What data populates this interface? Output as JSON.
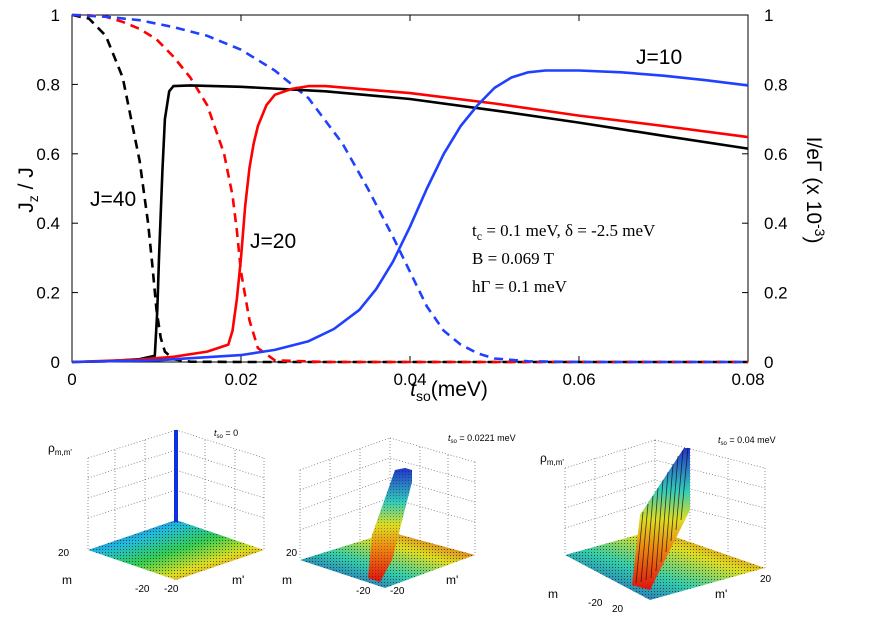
{
  "chart_data": {
    "type": "line",
    "xlabel_var": "t",
    "xlabel_sub": "so",
    "xlabel_unit": "(meV)",
    "ylabel_left_main": "J",
    "ylabel_left_sub": "z",
    "ylabel_left_rest": " / J",
    "ylabel_right_main": "I/eΓ (x 10",
    "ylabel_right_sup": "-3",
    "ylabel_right_end": ")",
    "xlim": [
      0,
      0.08
    ],
    "ylim_left": [
      0,
      1
    ],
    "ylim_right": [
      0,
      1
    ],
    "x_ticks": [
      "0",
      "0.02",
      "0.04",
      "0.06",
      "0.08"
    ],
    "y_ticks_left": [
      "0",
      "0.2",
      "0.4",
      "0.6",
      "0.8",
      "1"
    ],
    "y_ticks_right": [
      "0",
      "0.2",
      "0.4",
      "0.6",
      "0.8",
      "1"
    ],
    "annotations": {
      "j10": "J=10",
      "j20": "J=20",
      "j40": "J=40",
      "param1": "t",
      "param1_sub": "c",
      "param1_rest": " = 0.1 meV,   δ = -2.5 meV",
      "param2": "B = 0.069 T",
      "param3": "hΓ = 0.1 meV"
    },
    "series": [
      {
        "name": "J=40 Jz/J",
        "style": "dashed",
        "color": "#000000",
        "x": [
          0,
          0.002,
          0.004,
          0.006,
          0.008,
          0.009,
          0.0095,
          0.01,
          0.0105,
          0.011,
          0.012,
          0.014,
          0.02,
          0.03,
          0.04,
          0.08
        ],
        "y": [
          1,
          0.99,
          0.94,
          0.82,
          0.58,
          0.4,
          0.28,
          0.15,
          0.07,
          0.03,
          0.008,
          0.001,
          0,
          0,
          0,
          0
        ]
      },
      {
        "name": "J=20 Jz/J",
        "style": "dashed",
        "color": "#ff0000",
        "x": [
          0,
          0.002,
          0.004,
          0.006,
          0.008,
          0.01,
          0.012,
          0.014,
          0.016,
          0.018,
          0.019,
          0.0195,
          0.02,
          0.021,
          0.022,
          0.024,
          0.03,
          0.08
        ],
        "y": [
          1,
          0.999,
          0.995,
          0.98,
          0.96,
          0.93,
          0.88,
          0.82,
          0.74,
          0.6,
          0.48,
          0.38,
          0.26,
          0.12,
          0.04,
          0.005,
          0,
          0
        ]
      },
      {
        "name": "J=10 Jz/J",
        "style": "dashed",
        "color": "#2040ff",
        "x": [
          0,
          0.004,
          0.008,
          0.012,
          0.016,
          0.02,
          0.024,
          0.028,
          0.032,
          0.035,
          0.038,
          0.04,
          0.042,
          0.044,
          0.046,
          0.048,
          0.05,
          0.054,
          0.06,
          0.08
        ],
        "y": [
          1,
          0.995,
          0.985,
          0.965,
          0.94,
          0.9,
          0.84,
          0.76,
          0.63,
          0.5,
          0.36,
          0.26,
          0.16,
          0.09,
          0.05,
          0.025,
          0.01,
          0.002,
          0,
          0
        ]
      },
      {
        "name": "J=40 current",
        "style": "solid",
        "color": "#000000",
        "x": [
          0,
          0.004,
          0.008,
          0.0098,
          0.0101,
          0.0103,
          0.0107,
          0.011,
          0.0115,
          0.012,
          0.014,
          0.02,
          0.03,
          0.04,
          0.05,
          0.06,
          0.07,
          0.08
        ],
        "y": [
          0,
          0.002,
          0.008,
          0.018,
          0.15,
          0.3,
          0.55,
          0.7,
          0.78,
          0.795,
          0.797,
          0.793,
          0.78,
          0.758,
          0.725,
          0.69,
          0.652,
          0.615
        ]
      },
      {
        "name": "J=20 current",
        "style": "solid",
        "color": "#ff0000",
        "x": [
          0,
          0.008,
          0.012,
          0.016,
          0.0185,
          0.019,
          0.0195,
          0.02,
          0.0205,
          0.021,
          0.0215,
          0.022,
          0.023,
          0.024,
          0.026,
          0.028,
          0.03,
          0.04,
          0.05,
          0.06,
          0.07,
          0.08
        ],
        "y": [
          0,
          0.007,
          0.015,
          0.03,
          0.05,
          0.09,
          0.18,
          0.3,
          0.45,
          0.56,
          0.63,
          0.68,
          0.74,
          0.77,
          0.787,
          0.795,
          0.795,
          0.775,
          0.745,
          0.71,
          0.68,
          0.648
        ]
      },
      {
        "name": "J=10 current",
        "style": "solid",
        "color": "#2040ff",
        "x": [
          0,
          0.01,
          0.02,
          0.024,
          0.028,
          0.031,
          0.034,
          0.036,
          0.038,
          0.04,
          0.042,
          0.044,
          0.046,
          0.048,
          0.05,
          0.052,
          0.054,
          0.056,
          0.06,
          0.065,
          0.07,
          0.075,
          0.08
        ],
        "y": [
          0,
          0.005,
          0.02,
          0.035,
          0.06,
          0.095,
          0.15,
          0.21,
          0.29,
          0.39,
          0.5,
          0.6,
          0.68,
          0.74,
          0.79,
          0.82,
          0.835,
          0.84,
          0.84,
          0.835,
          0.825,
          0.812,
          0.797
        ]
      }
    ]
  },
  "insets": [
    {
      "rho_label": "ρ",
      "rho_sub": "m,m'",
      "tso_var": "t",
      "tso_sub": "so",
      "tso_value": " = 0",
      "m_label": "m",
      "mprime_label": "m'",
      "tick_a": "20",
      "tick_b": "-20",
      "tick_c": "-20"
    },
    {
      "rho_label": "",
      "rho_sub": "",
      "tso_var": "t",
      "tso_sub": "so",
      "tso_value": " = 0.0221 meV",
      "m_label": "m",
      "mprime_label": "m'",
      "tick_a": "20",
      "tick_b": "-20",
      "tick_c": "-20"
    },
    {
      "rho_label": "ρ",
      "rho_sub": "m,m'",
      "tso_var": "t",
      "tso_sub": "so",
      "tso_value": " = 0.04 meV",
      "m_label": "m",
      "mprime_label": "m'",
      "tick_a": "20",
      "tick_b": "-20",
      "tick_c": "20"
    }
  ]
}
